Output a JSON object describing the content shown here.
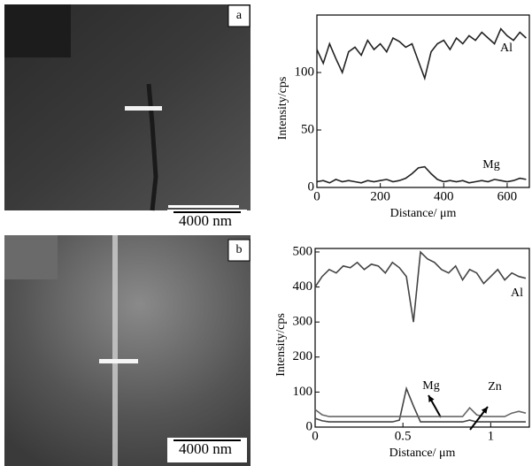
{
  "chart_data": [
    {
      "type": "line",
      "panel_label": "a",
      "scale_bar": "4000 nm",
      "x_label": "Distance/ μm",
      "y_label": "Intensity/cps",
      "x": [
        0,
        20,
        40,
        60,
        80,
        100,
        120,
        140,
        160,
        180,
        200,
        220,
        240,
        260,
        280,
        300,
        320,
        340,
        360,
        380,
        400,
        420,
        440,
        460,
        480,
        500,
        520,
        540,
        560,
        580,
        600,
        620,
        640,
        660
      ],
      "series": [
        {
          "name": "Al",
          "color": "#222222",
          "values": [
            120,
            108,
            125,
            112,
            100,
            118,
            122,
            115,
            128,
            120,
            125,
            118,
            130,
            127,
            122,
            125,
            110,
            95,
            118,
            125,
            128,
            120,
            130,
            125,
            132,
            128,
            135,
            130,
            125,
            138,
            132,
            128,
            135,
            130
          ]
        },
        {
          "name": "Mg",
          "color": "#222222",
          "values": [
            5,
            6,
            4,
            7,
            5,
            6,
            5,
            4,
            6,
            5,
            6,
            7,
            5,
            6,
            8,
            12,
            17,
            18,
            12,
            7,
            5,
            6,
            5,
            6,
            4,
            5,
            6,
            5,
            7,
            6,
            5,
            6,
            8,
            7
          ]
        }
      ],
      "xlim": [
        0,
        670
      ],
      "xticks": [
        0,
        200,
        400,
        600
      ],
      "ylim": [
        0,
        150
      ],
      "yticks": [
        0,
        50,
        100
      ]
    },
    {
      "type": "line",
      "panel_label": "b",
      "scale_bar": "4000 nm",
      "x_label": "Distance/ μm",
      "y_label": "Intensity/cps",
      "x": [
        0,
        0.04,
        0.08,
        0.12,
        0.16,
        0.2,
        0.24,
        0.28,
        0.32,
        0.36,
        0.4,
        0.44,
        0.48,
        0.52,
        0.56,
        0.6,
        0.64,
        0.68,
        0.72,
        0.76,
        0.8,
        0.84,
        0.88,
        0.92,
        0.96,
        1,
        1.04,
        1.08,
        1.12,
        1.16,
        1.2
      ],
      "series": [
        {
          "name": "Al",
          "color": "#444444",
          "values": [
            400,
            430,
            450,
            440,
            460,
            455,
            470,
            450,
            465,
            460,
            440,
            470,
            455,
            430,
            300,
            500,
            480,
            470,
            450,
            440,
            460,
            420,
            450,
            440,
            410,
            430,
            450,
            420,
            440,
            430,
            425
          ]
        },
        {
          "name": "Mg",
          "color": "#444444",
          "values": [
            25,
            18,
            15,
            15,
            15,
            15,
            15,
            15,
            15,
            15,
            15,
            15,
            20,
            110,
            60,
            15,
            15,
            15,
            15,
            15,
            15,
            15,
            20,
            15,
            15,
            15,
            15,
            15,
            15,
            15,
            15
          ]
        },
        {
          "name": "Zn",
          "color": "#666666",
          "values": [
            50,
            35,
            30,
            30,
            30,
            30,
            30,
            30,
            30,
            30,
            30,
            30,
            30,
            30,
            30,
            30,
            30,
            30,
            30,
            30,
            30,
            30,
            55,
            35,
            30,
            30,
            30,
            30,
            40,
            45,
            40
          ]
        }
      ],
      "xlim": [
        0,
        1.22
      ],
      "xticks": [
        0,
        0.5,
        1
      ],
      "ylim": [
        0,
        510
      ],
      "yticks": [
        0,
        100,
        200,
        300,
        400,
        500
      ]
    }
  ]
}
